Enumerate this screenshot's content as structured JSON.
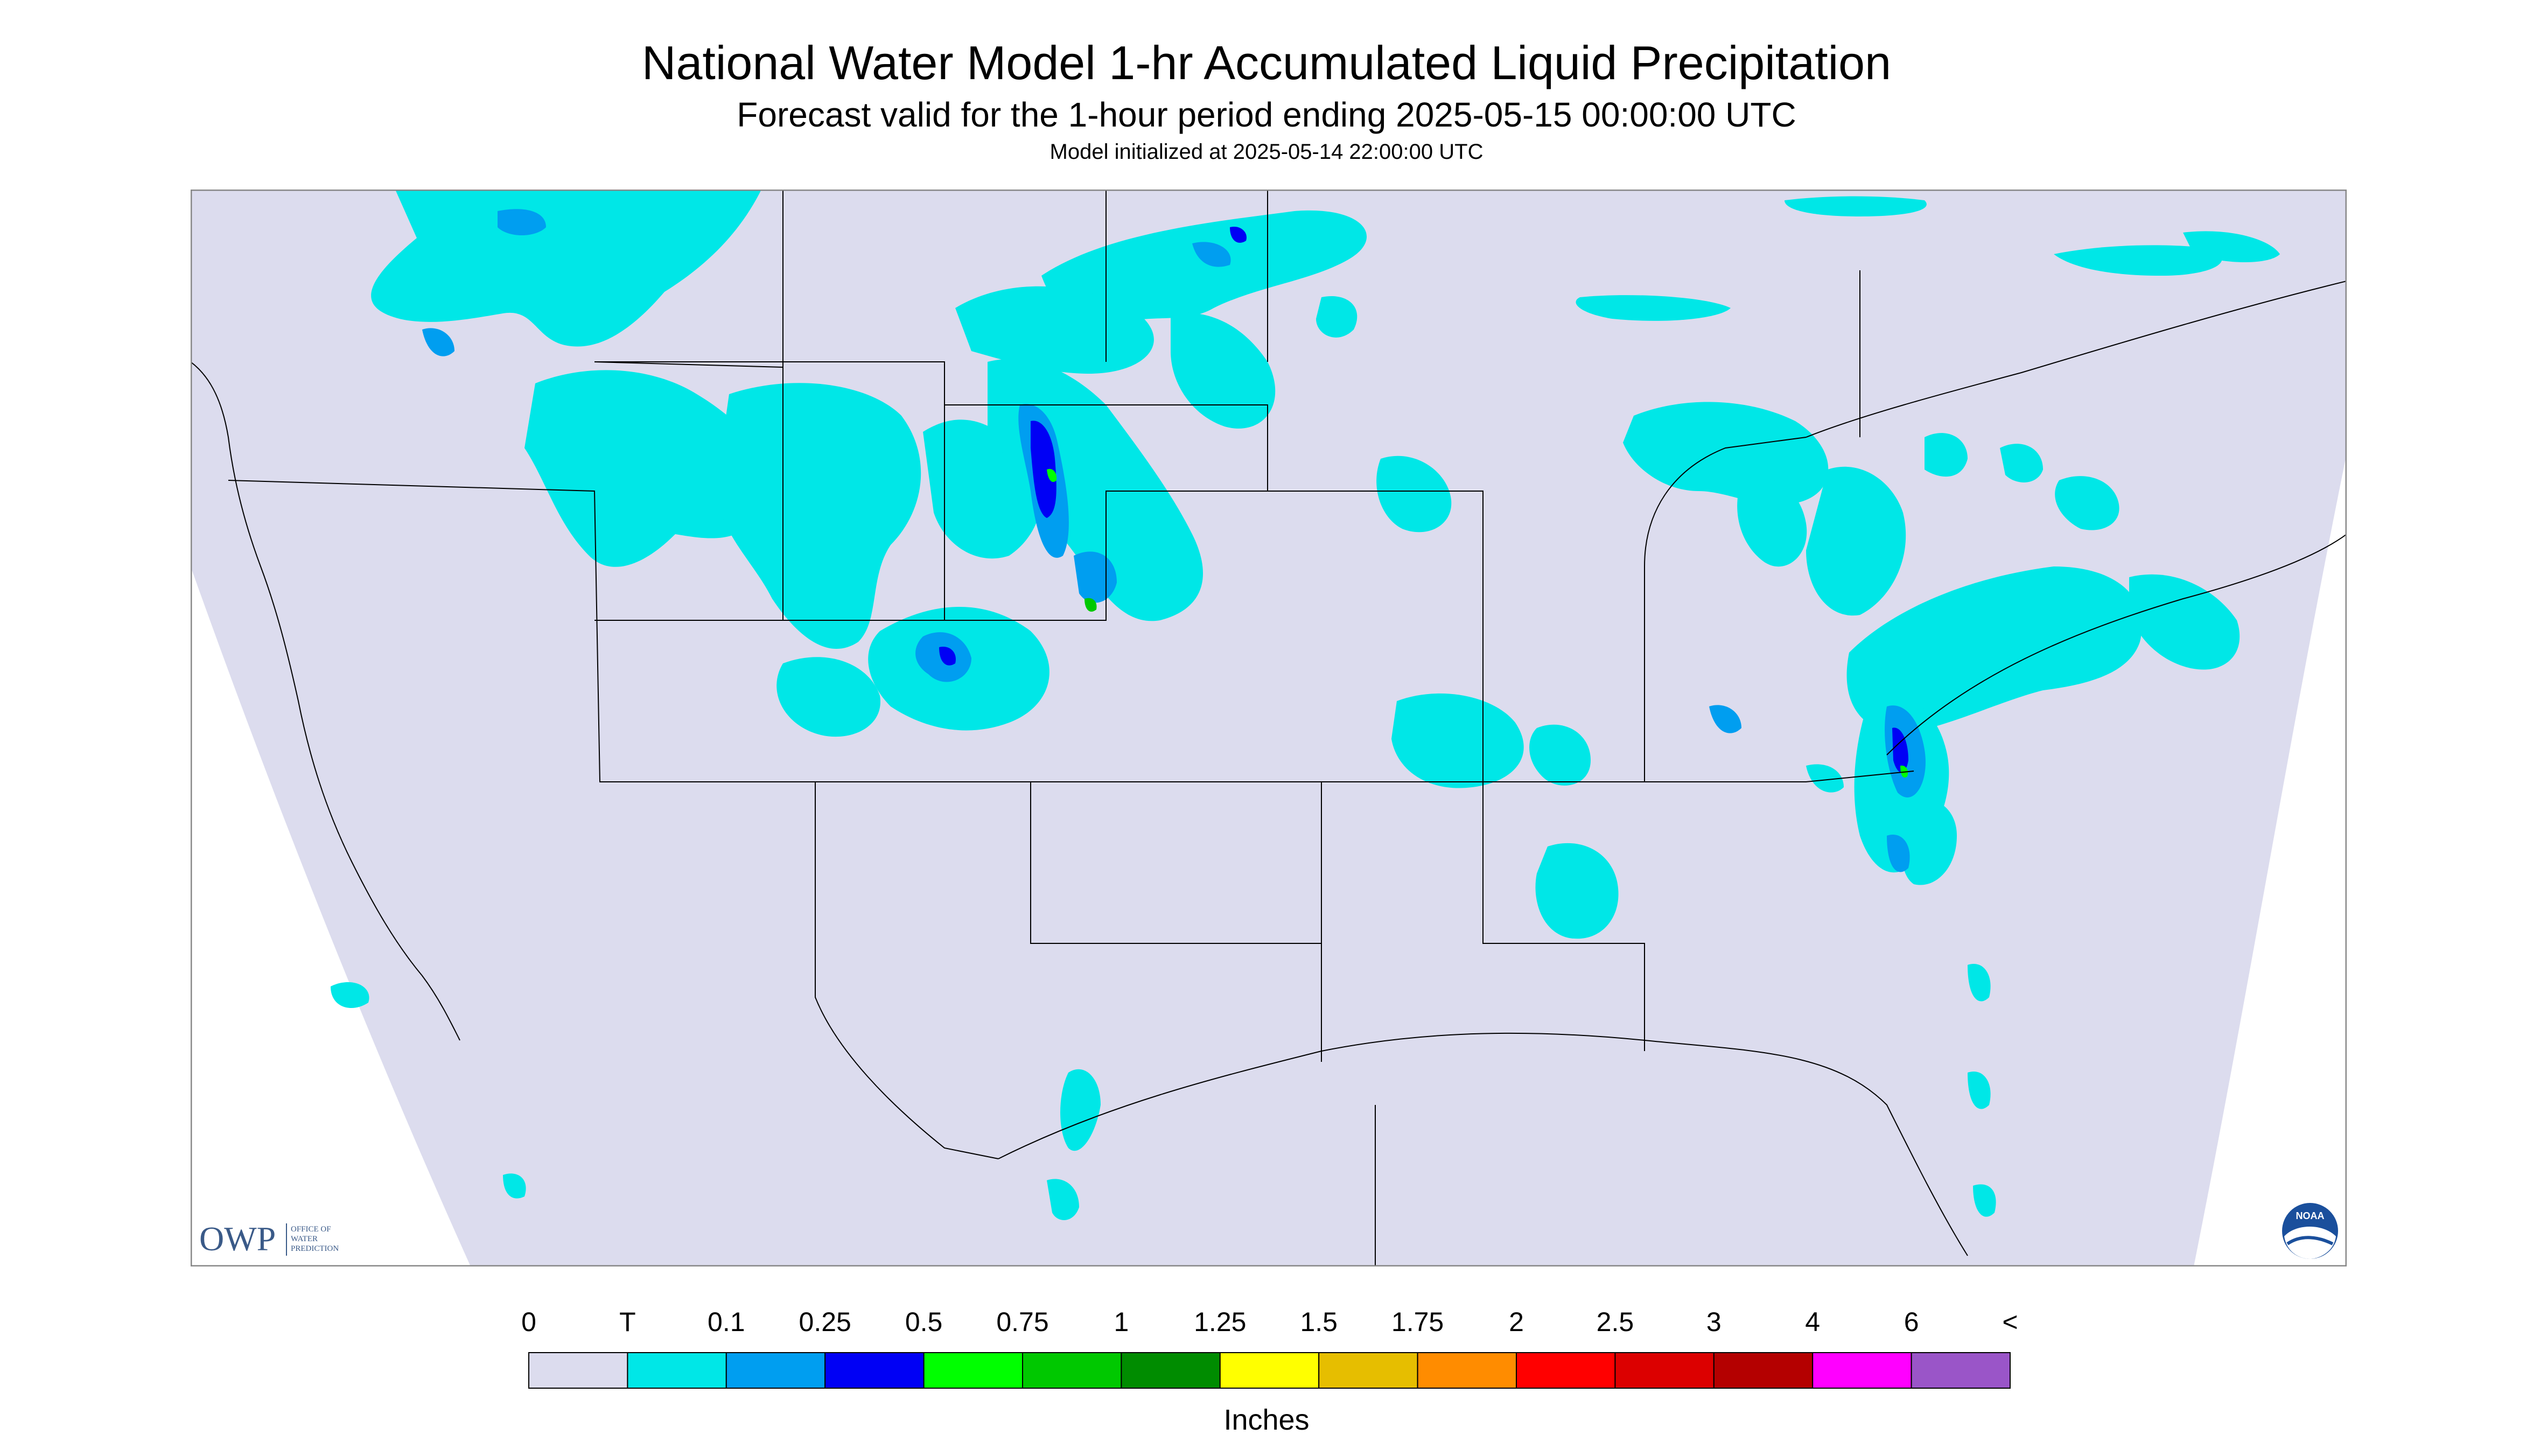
{
  "header": {
    "title": "National Water Model 1-hr Accumulated Liquid Precipitation",
    "subtitle": "Forecast valid for the 1-hour period ending 2025-05-15 00:00:00 UTC",
    "init": "Model initialized at 2025-05-14 22:00:00 UTC"
  },
  "legend": {
    "units": "Inches",
    "labels": [
      "0",
      "T",
      "0.1",
      "0.25",
      "0.5",
      "0.75",
      "1",
      "1.25",
      "1.5",
      "1.75",
      "2",
      "2.5",
      "3",
      "4",
      "6",
      "<"
    ],
    "colors": [
      "#dcdcee",
      "#00e7e7",
      "#009ef0",
      "#0000f5",
      "#00ff00",
      "#00c800",
      "#008c00",
      "#ffff00",
      "#e6be00",
      "#ff8c00",
      "#ff0000",
      "#dc0000",
      "#b40000",
      "#ff00ff",
      "#9a55c8"
    ]
  },
  "logos": {
    "owp_mark": "OWP",
    "owp_text": [
      "OFFICE OF",
      "WATER",
      "PREDICTION"
    ],
    "noaa_text": "NOAA"
  },
  "map_colors": {
    "background": "#dcdcee",
    "outside": "#ffffff",
    "border": "#000000"
  }
}
